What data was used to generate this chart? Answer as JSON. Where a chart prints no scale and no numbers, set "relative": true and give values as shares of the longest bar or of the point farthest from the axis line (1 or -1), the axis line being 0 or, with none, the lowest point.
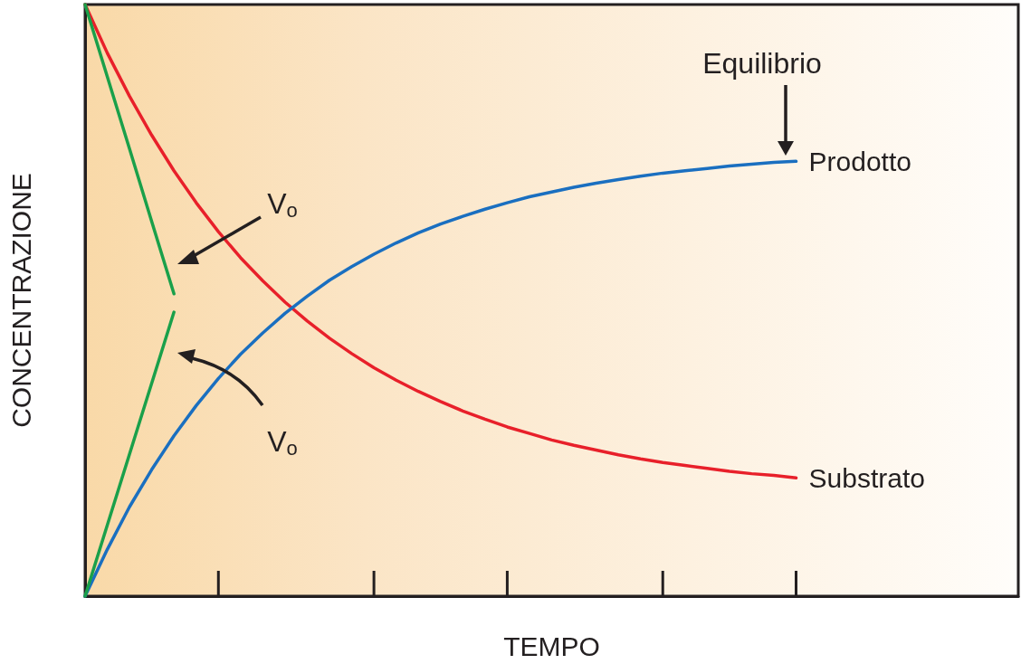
{
  "chart_data": {
    "type": "line",
    "relative": true,
    "xlabel": "TEMPO",
    "ylabel": "CONCENTRAZIONE",
    "categories": [
      null,
      null,
      null,
      null,
      null,
      null,
      null,
      null,
      null,
      null,
      null,
      null,
      null,
      null,
      null,
      null,
      null,
      null,
      null,
      null,
      null,
      null,
      null,
      null,
      null,
      null,
      null,
      null,
      null,
      null,
      null,
      null,
      null,
      null,
      null,
      null,
      null,
      null,
      null,
      null,
      null,
      null,
      null
    ],
    "series": [
      {
        "name": "Substrato",
        "color": "#e8202a",
        "values": [
          1.0,
          0.918,
          0.845,
          0.779,
          0.719,
          0.665,
          0.616,
          0.572,
          0.533,
          0.497,
          0.465,
          0.436,
          0.41,
          0.386,
          0.365,
          0.346,
          0.329,
          0.313,
          0.299,
          0.286,
          0.275,
          0.264,
          0.255,
          0.247,
          0.239,
          0.232,
          0.226,
          0.221,
          0.216,
          0.211,
          0.207,
          0.204,
          0.2,
          null,
          null,
          null,
          null,
          null,
          null,
          null,
          null,
          null,
          null
        ]
      },
      {
        "name": "Prodotto",
        "color": "#1a6fc0",
        "values": [
          0,
          0.079,
          0.151,
          0.214,
          0.271,
          0.322,
          0.368,
          0.409,
          0.445,
          0.478,
          0.507,
          0.534,
          0.557,
          0.578,
          0.597,
          0.614,
          0.629,
          0.642,
          0.654,
          0.665,
          0.675,
          0.683,
          0.691,
          0.698,
          0.704,
          0.71,
          0.715,
          0.719,
          0.723,
          0.727,
          0.73,
          0.733,
          0.735,
          null,
          null,
          null,
          null,
          null,
          null,
          null,
          null,
          null,
          null
        ]
      },
      {
        "color": "#1aa04a",
        "values": [
          1.0,
          0.878,
          0.756,
          0.633,
          0.511,
          null,
          null,
          null,
          null,
          null,
          null,
          null,
          null,
          null,
          null,
          null,
          null,
          null,
          null,
          null,
          null,
          null,
          null,
          null,
          null,
          null,
          null,
          null,
          null,
          null,
          null,
          null,
          null,
          null,
          null,
          null,
          null,
          null,
          null,
          null,
          null,
          null,
          null
        ]
      },
      {
        "color": "#1aa04a",
        "values": [
          0,
          0.12,
          0.24,
          0.36,
          0.48,
          null,
          null,
          null,
          null,
          null,
          null,
          null,
          null,
          null,
          null,
          null,
          null,
          null,
          null,
          null,
          null,
          null,
          null,
          null,
          null,
          null,
          null,
          null,
          null,
          null,
          null,
          null,
          null,
          null,
          null,
          null,
          null,
          null,
          null,
          null,
          null,
          null,
          null
        ]
      }
    ],
    "annotations": [
      "Equilibrio",
      "V$_{o}$",
      "V$_{o}$"
    ],
    "legend": false,
    "grid": false,
    "marker": "none",
    "line_style": "solid"
  }
}
